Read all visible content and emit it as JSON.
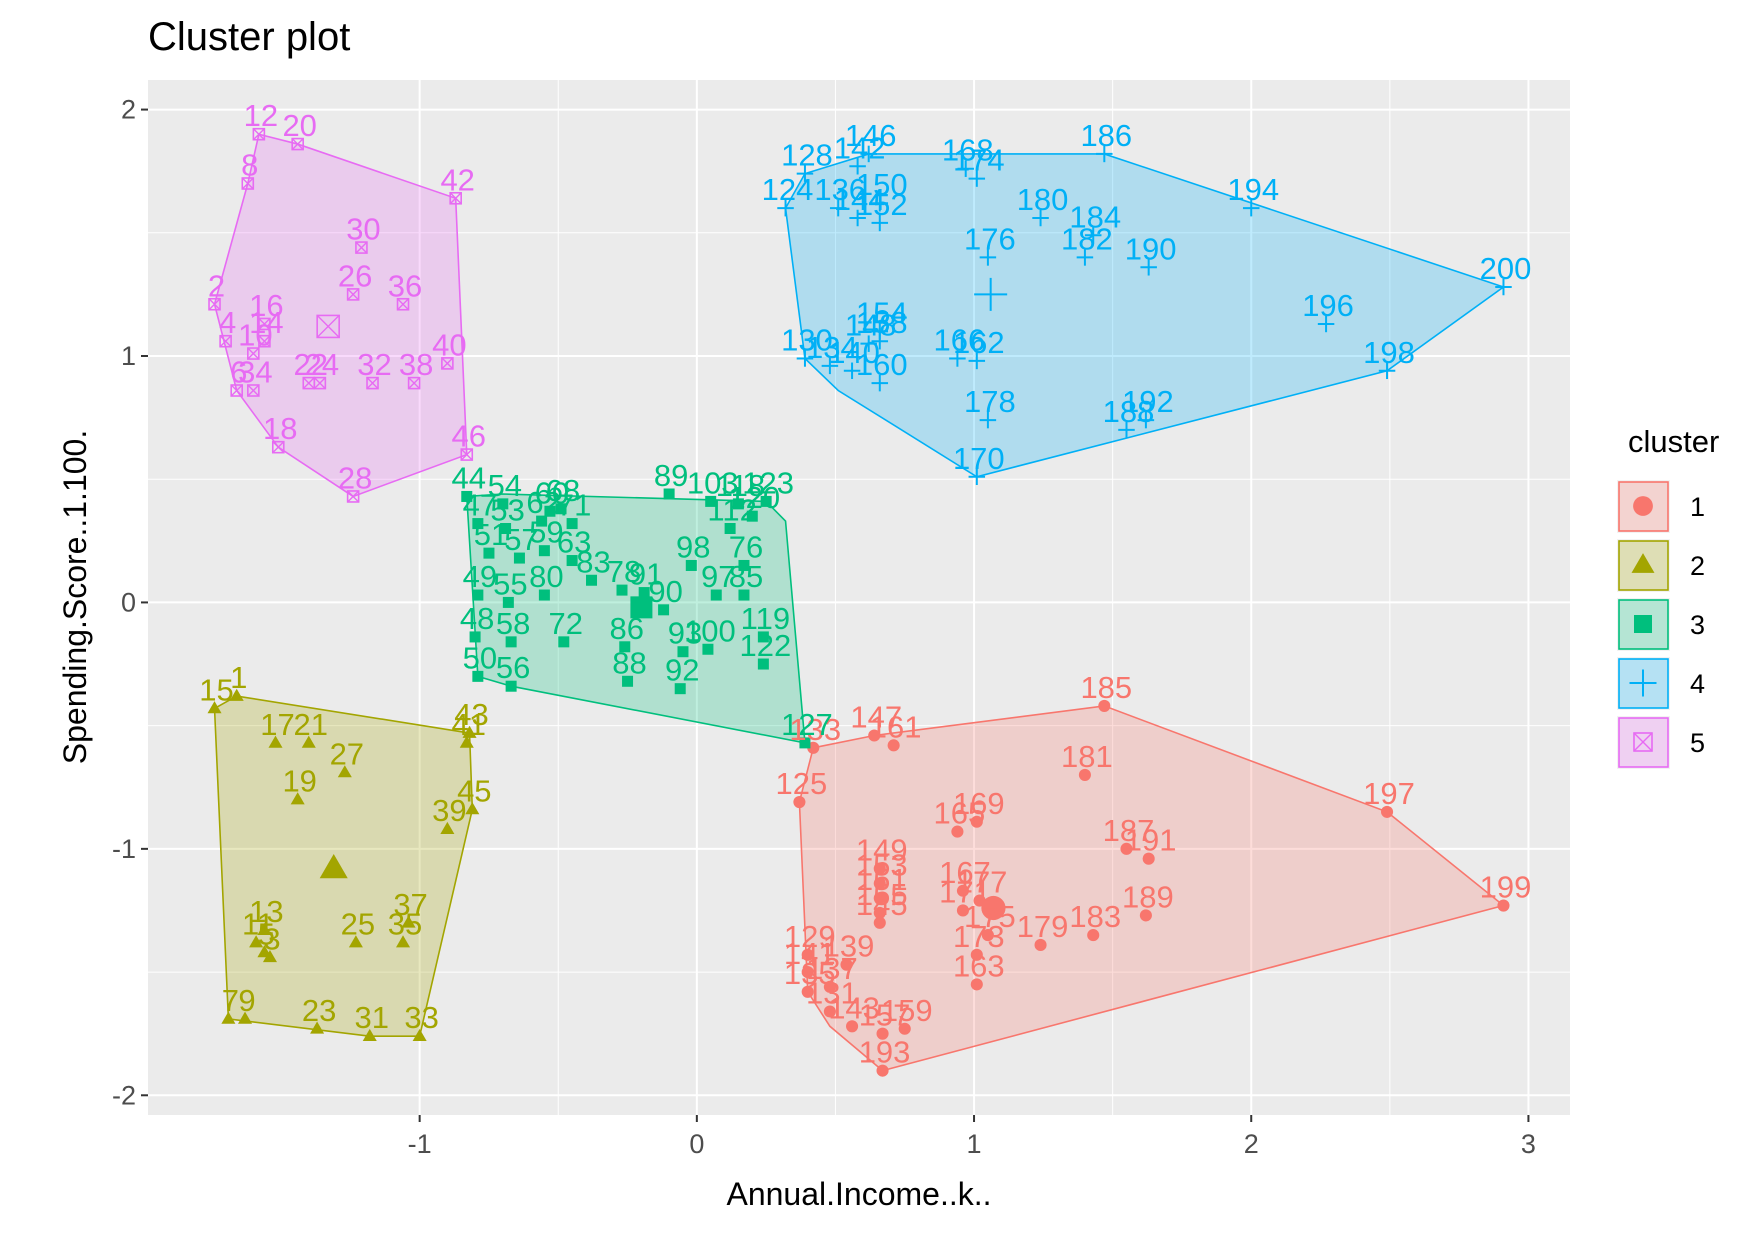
{
  "chart_data": {
    "type": "scatter",
    "title": "Cluster plot",
    "xlabel": "Annual.Income..k..",
    "ylabel": "Spending.Score..1.100.",
    "xlim": [
      -1.98,
      3.15
    ],
    "ylim": [
      -2.08,
      2.12
    ],
    "xticks": [
      -1,
      0,
      1,
      2,
      3
    ],
    "yticks": [
      -2,
      -1,
      0,
      1,
      2
    ],
    "grid": true,
    "legend": {
      "title": "cluster",
      "position": "right",
      "entries": [
        "1",
        "2",
        "3",
        "4",
        "5"
      ]
    },
    "series": [
      {
        "name": "1",
        "color": "#F8766D",
        "marker": "circle",
        "center": [
          1.07,
          -1.24
        ],
        "hull": [
          [
            0.42,
            -0.59
          ],
          [
            0.64,
            -0.54
          ],
          [
            1.47,
            -0.42
          ],
          [
            2.49,
            -0.85
          ],
          [
            2.91,
            -1.23
          ],
          [
            0.67,
            -1.9
          ],
          [
            0.48,
            -1.72
          ],
          [
            0.4,
            -1.58
          ],
          [
            0.37,
            -0.81
          ]
        ],
        "points": [
          {
            "id": "125",
            "x": 0.37,
            "y": -0.81
          },
          {
            "id": "133",
            "x": 0.42,
            "y": -0.59
          },
          {
            "id": "147",
            "x": 0.64,
            "y": -0.54
          },
          {
            "id": "161",
            "x": 0.71,
            "y": -0.58
          },
          {
            "id": "185",
            "x": 1.47,
            "y": -0.42
          },
          {
            "id": "181",
            "x": 1.4,
            "y": -0.7
          },
          {
            "id": "197",
            "x": 2.49,
            "y": -0.85
          },
          {
            "id": "199",
            "x": 2.91,
            "y": -1.23
          },
          {
            "id": "165",
            "x": 0.94,
            "y": -0.93
          },
          {
            "id": "169",
            "x": 1.01,
            "y": -0.89
          },
          {
            "id": "187",
            "x": 1.55,
            "y": -1.0
          },
          {
            "id": "191",
            "x": 1.63,
            "y": -1.04
          },
          {
            "id": "149",
            "x": 0.66,
            "y": -1.08
          },
          {
            "id": "153",
            "x": 0.66,
            "y": -1.14
          },
          {
            "id": "167",
            "x": 0.96,
            "y": -1.17
          },
          {
            "id": "151",
            "x": 0.66,
            "y": -1.2
          },
          {
            "id": "155",
            "x": 0.66,
            "y": -1.26
          },
          {
            "id": "177",
            "x": 1.02,
            "y": -1.21
          },
          {
            "id": "171",
            "x": 0.96,
            "y": -1.25
          },
          {
            "id": "175",
            "x": 1.05,
            "y": -1.35
          },
          {
            "id": "179",
            "x": 1.24,
            "y": -1.39
          },
          {
            "id": "183",
            "x": 1.43,
            "y": -1.35
          },
          {
            "id": "189",
            "x": 1.62,
            "y": -1.27
          },
          {
            "id": "173",
            "x": 1.01,
            "y": -1.43
          },
          {
            "id": "145",
            "x": 0.66,
            "y": -1.3
          },
          {
            "id": "129",
            "x": 0.4,
            "y": -1.43
          },
          {
            "id": "139",
            "x": 0.54,
            "y": -1.47
          },
          {
            "id": "141",
            "x": 0.4,
            "y": -1.5
          },
          {
            "id": "137",
            "x": 0.48,
            "y": -1.56
          },
          {
            "id": "135",
            "x": 0.4,
            "y": -1.58
          },
          {
            "id": "131",
            "x": 0.48,
            "y": -1.66
          },
          {
            "id": "163",
            "x": 1.01,
            "y": -1.55
          },
          {
            "id": "157",
            "x": 0.67,
            "y": -1.75
          },
          {
            "id": "159",
            "x": 0.75,
            "y": -1.73
          },
          {
            "id": "193",
            "x": 0.67,
            "y": -1.9
          },
          {
            "id": "143",
            "x": 0.56,
            "y": -1.72
          }
        ]
      },
      {
        "name": "2",
        "color": "#A3A500",
        "marker": "triangle",
        "center": [
          -1.31,
          -1.08
        ],
        "hull": [
          [
            -1.74,
            -0.43
          ],
          [
            -1.66,
            -0.38
          ],
          [
            -0.82,
            -0.53
          ],
          [
            -0.81,
            -0.84
          ],
          [
            -1.0,
            -1.76
          ],
          [
            -1.18,
            -1.76
          ],
          [
            -1.69,
            -1.69
          ]
        ],
        "points": [
          {
            "id": "15",
            "x": -1.74,
            "y": -0.43
          },
          {
            "id": "1",
            "x": -1.66,
            "y": -0.38
          },
          {
            "id": "17",
            "x": -1.52,
            "y": -0.57
          },
          {
            "id": "21",
            "x": -1.4,
            "y": -0.57
          },
          {
            "id": "27",
            "x": -1.27,
            "y": -0.69
          },
          {
            "id": "19",
            "x": -1.44,
            "y": -0.8
          },
          {
            "id": "41",
            "x": -0.83,
            "y": -0.57
          },
          {
            "id": "43",
            "x": -0.82,
            "y": -0.53
          },
          {
            "id": "45",
            "x": -0.81,
            "y": -0.84
          },
          {
            "id": "39",
            "x": -0.9,
            "y": -0.92
          },
          {
            "id": "37",
            "x": -1.04,
            "y": -1.3
          },
          {
            "id": "35",
            "x": -1.06,
            "y": -1.38
          },
          {
            "id": "25",
            "x": -1.23,
            "y": -1.38
          },
          {
            "id": "13",
            "x": -1.56,
            "y": -1.33
          },
          {
            "id": "11",
            "x": -1.59,
            "y": -1.38
          },
          {
            "id": "5",
            "x": -1.56,
            "y": -1.42
          },
          {
            "id": "3",
            "x": -1.54,
            "y": -1.44
          },
          {
            "id": "7",
            "x": -1.69,
            "y": -1.69
          },
          {
            "id": "9",
            "x": -1.63,
            "y": -1.69
          },
          {
            "id": "23",
            "x": -1.37,
            "y": -1.73
          },
          {
            "id": "31",
            "x": -1.18,
            "y": -1.76
          },
          {
            "id": "33",
            "x": -1.0,
            "y": -1.76
          }
        ]
      },
      {
        "name": "3",
        "color": "#00BF7D",
        "marker": "square",
        "center": [
          -0.2,
          -0.02
        ],
        "hull": [
          [
            -0.83,
            0.43
          ],
          [
            -0.7,
            0.44
          ],
          [
            0.25,
            0.41
          ],
          [
            0.32,
            0.33
          ],
          [
            0.39,
            -0.57
          ],
          [
            -0.67,
            -0.34
          ],
          [
            -0.79,
            -0.3
          ]
        ],
        "points": [
          {
            "id": "44",
            "x": -0.83,
            "y": 0.43
          },
          {
            "id": "54",
            "x": -0.7,
            "y": 0.4
          },
          {
            "id": "60",
            "x": -0.53,
            "y": 0.37
          },
          {
            "id": "68",
            "x": -0.49,
            "y": 0.38
          },
          {
            "id": "89",
            "x": -0.1,
            "y": 0.44
          },
          {
            "id": "103",
            "x": 0.05,
            "y": 0.41
          },
          {
            "id": "118",
            "x": 0.15,
            "y": 0.4
          },
          {
            "id": "123",
            "x": 0.25,
            "y": 0.41
          },
          {
            "id": "47",
            "x": -0.79,
            "y": 0.32
          },
          {
            "id": "53",
            "x": -0.69,
            "y": 0.3
          },
          {
            "id": "62",
            "x": -0.56,
            "y": 0.33
          },
          {
            "id": "71",
            "x": -0.45,
            "y": 0.32
          },
          {
            "id": "120",
            "x": 0.2,
            "y": 0.35
          },
          {
            "id": "112",
            "x": 0.12,
            "y": 0.3
          },
          {
            "id": "51",
            "x": -0.75,
            "y": 0.2
          },
          {
            "id": "57",
            "x": -0.64,
            "y": 0.18
          },
          {
            "id": "59",
            "x": -0.55,
            "y": 0.21
          },
          {
            "id": "63",
            "x": -0.45,
            "y": 0.17
          },
          {
            "id": "98",
            "x": -0.02,
            "y": 0.15
          },
          {
            "id": "76",
            "x": 0.17,
            "y": 0.15
          },
          {
            "id": "49",
            "x": -0.79,
            "y": 0.03
          },
          {
            "id": "55",
            "x": -0.68,
            "y": 0.0
          },
          {
            "id": "80",
            "x": -0.55,
            "y": 0.03
          },
          {
            "id": "83",
            "x": -0.38,
            "y": 0.09
          },
          {
            "id": "91",
            "x": -0.19,
            "y": 0.04
          },
          {
            "id": "78",
            "x": -0.27,
            "y": 0.05
          },
          {
            "id": "90",
            "x": -0.12,
            "y": -0.03
          },
          {
            "id": "97",
            "x": 0.07,
            "y": 0.03
          },
          {
            "id": "85",
            "x": 0.17,
            "y": 0.03
          },
          {
            "id": "48",
            "x": -0.8,
            "y": -0.14
          },
          {
            "id": "58",
            "x": -0.67,
            "y": -0.16
          },
          {
            "id": "72",
            "x": -0.48,
            "y": -0.16
          },
          {
            "id": "86",
            "x": -0.26,
            "y": -0.18
          },
          {
            "id": "93",
            "x": -0.05,
            "y": -0.2
          },
          {
            "id": "100",
            "x": 0.04,
            "y": -0.19
          },
          {
            "id": "119",
            "x": 0.24,
            "y": -0.14
          },
          {
            "id": "50",
            "x": -0.79,
            "y": -0.3
          },
          {
            "id": "56",
            "x": -0.67,
            "y": -0.34
          },
          {
            "id": "88",
            "x": -0.25,
            "y": -0.32
          },
          {
            "id": "92",
            "x": -0.06,
            "y": -0.35
          },
          {
            "id": "122",
            "x": 0.24,
            "y": -0.25
          },
          {
            "id": "127",
            "x": 0.39,
            "y": -0.57
          }
        ]
      },
      {
        "name": "4",
        "color": "#00B0F6",
        "marker": "plus",
        "center": [
          1.06,
          1.25
        ],
        "hull": [
          [
            0.32,
            1.6
          ],
          [
            0.39,
            1.74
          ],
          [
            0.62,
            1.82
          ],
          [
            1.47,
            1.82
          ],
          [
            2.91,
            1.28
          ],
          [
            2.49,
            0.94
          ],
          [
            1.01,
            0.51
          ],
          [
            0.51,
            0.86
          ],
          [
            0.39,
            0.99
          ]
        ],
        "points": [
          {
            "id": "128",
            "x": 0.39,
            "y": 1.74
          },
          {
            "id": "146",
            "x": 0.62,
            "y": 1.82
          },
          {
            "id": "142",
            "x": 0.58,
            "y": 1.77
          },
          {
            "id": "168",
            "x": 0.97,
            "y": 1.76
          },
          {
            "id": "174",
            "x": 1.01,
            "y": 1.72
          },
          {
            "id": "186",
            "x": 1.47,
            "y": 1.82
          },
          {
            "id": "124",
            "x": 0.32,
            "y": 1.6
          },
          {
            "id": "136",
            "x": 0.51,
            "y": 1.6
          },
          {
            "id": "150",
            "x": 0.66,
            "y": 1.62
          },
          {
            "id": "152",
            "x": 0.66,
            "y": 1.54
          },
          {
            "id": "144",
            "x": 0.58,
            "y": 1.56
          },
          {
            "id": "180",
            "x": 1.24,
            "y": 1.56
          },
          {
            "id": "184",
            "x": 1.43,
            "y": 1.49
          },
          {
            "id": "182",
            "x": 1.4,
            "y": 1.4
          },
          {
            "id": "190",
            "x": 1.63,
            "y": 1.36
          },
          {
            "id": "194",
            "x": 2.0,
            "y": 1.6
          },
          {
            "id": "176",
            "x": 1.05,
            "y": 1.4
          },
          {
            "id": "200",
            "x": 2.91,
            "y": 1.28
          },
          {
            "id": "196",
            "x": 2.27,
            "y": 1.13
          },
          {
            "id": "198",
            "x": 2.49,
            "y": 0.94
          },
          {
            "id": "158",
            "x": 0.66,
            "y": 1.06
          },
          {
            "id": "154",
            "x": 0.66,
            "y": 1.1
          },
          {
            "id": "130",
            "x": 0.39,
            "y": 0.99
          },
          {
            "id": "148",
            "x": 0.62,
            "y": 1.05
          },
          {
            "id": "134",
            "x": 0.48,
            "y": 0.96
          },
          {
            "id": "140",
            "x": 0.56,
            "y": 0.94
          },
          {
            "id": "160",
            "x": 0.66,
            "y": 0.89
          },
          {
            "id": "166",
            "x": 0.94,
            "y": 0.99
          },
          {
            "id": "162",
            "x": 1.01,
            "y": 0.98
          },
          {
            "id": "178",
            "x": 1.05,
            "y": 0.74
          },
          {
            "id": "192",
            "x": 1.62,
            "y": 0.74
          },
          {
            "id": "188",
            "x": 1.55,
            "y": 0.7
          },
          {
            "id": "170",
            "x": 1.01,
            "y": 0.51
          }
        ]
      },
      {
        "name": "5",
        "color": "#E76BF3",
        "marker": "square-cross",
        "center": [
          -1.33,
          1.12
        ],
        "hull": [
          [
            -1.58,
            1.9
          ],
          [
            -1.44,
            1.86
          ],
          [
            -0.87,
            1.64
          ],
          [
            -0.83,
            0.6
          ],
          [
            -1.24,
            0.43
          ],
          [
            -1.51,
            0.63
          ],
          [
            -1.66,
            0.86
          ],
          [
            -1.74,
            1.21
          ],
          [
            -1.62,
            1.7
          ]
        ],
        "points": [
          {
            "id": "12",
            "x": -1.58,
            "y": 1.9
          },
          {
            "id": "20",
            "x": -1.44,
            "y": 1.86
          },
          {
            "id": "8",
            "x": -1.62,
            "y": 1.7
          },
          {
            "id": "42",
            "x": -0.87,
            "y": 1.64
          },
          {
            "id": "30",
            "x": -1.21,
            "y": 1.44
          },
          {
            "id": "26",
            "x": -1.24,
            "y": 1.25
          },
          {
            "id": "36",
            "x": -1.06,
            "y": 1.21
          },
          {
            "id": "2",
            "x": -1.74,
            "y": 1.21
          },
          {
            "id": "16",
            "x": -1.56,
            "y": 1.13
          },
          {
            "id": "4",
            "x": -1.7,
            "y": 1.06
          },
          {
            "id": "14",
            "x": -1.56,
            "y": 1.06
          },
          {
            "id": "22",
            "x": -1.4,
            "y": 0.89
          },
          {
            "id": "24",
            "x": -1.36,
            "y": 0.89
          },
          {
            "id": "32",
            "x": -1.17,
            "y": 0.89
          },
          {
            "id": "38",
            "x": -1.02,
            "y": 0.89
          },
          {
            "id": "40",
            "x": -0.9,
            "y": 0.97
          },
          {
            "id": "10",
            "x": -1.6,
            "y": 1.01
          },
          {
            "id": "6",
            "x": -1.66,
            "y": 0.86
          },
          {
            "id": "18",
            "x": -1.51,
            "y": 0.63
          },
          {
            "id": "46",
            "x": -0.83,
            "y": 0.6
          },
          {
            "id": "28",
            "x": -1.24,
            "y": 0.43
          },
          {
            "id": "34",
            "x": -1.6,
            "y": 0.86
          }
        ]
      }
    ]
  }
}
